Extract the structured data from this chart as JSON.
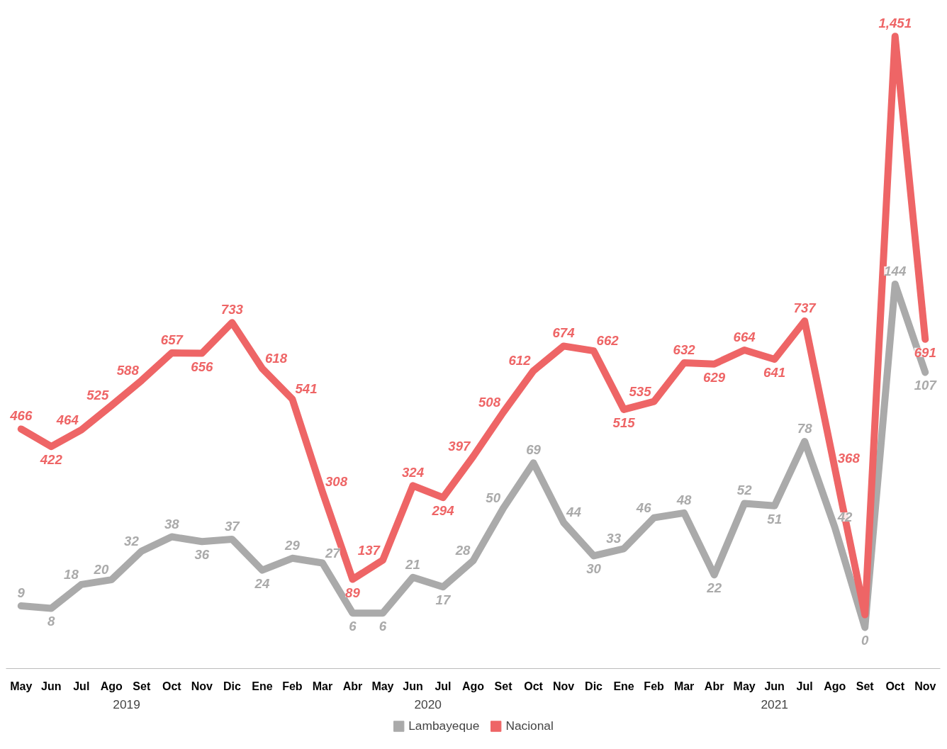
{
  "chart_data": {
    "type": "line",
    "x": [
      "2019-05",
      "2019-06",
      "2019-07",
      "2019-08",
      "2019-09",
      "2019-10",
      "2019-11",
      "2019-12",
      "2020-01",
      "2020-02",
      "2020-03",
      "2020-04",
      "2020-05",
      "2020-06",
      "2020-07",
      "2020-08",
      "2020-09",
      "2020-10",
      "2020-11",
      "2020-12",
      "2021-01",
      "2021-02",
      "2021-03",
      "2021-04",
      "2021-05",
      "2021-06",
      "2021-07",
      "2021-08",
      "2021-09",
      "2021-10",
      "2021-11"
    ],
    "xlim": [
      "2019-04-16",
      "2021-11-16"
    ],
    "xticks": [
      {
        "value": "2019-05",
        "label": "May"
      },
      {
        "value": "2019-06",
        "label": "Jun"
      },
      {
        "value": "2019-07",
        "label": "Jul"
      },
      {
        "value": "2019-08",
        "label": "Ago"
      },
      {
        "value": "2019-09",
        "label": "Set"
      },
      {
        "value": "2019-10",
        "label": "Oct"
      },
      {
        "value": "2019-11",
        "label": "Nov"
      },
      {
        "value": "2019-12",
        "label": "Dic"
      },
      {
        "value": "2020-01",
        "label": "Ene"
      },
      {
        "value": "2020-02",
        "label": "Feb"
      },
      {
        "value": "2020-03",
        "label": "Mar"
      },
      {
        "value": "2020-04",
        "label": "Abr"
      },
      {
        "value": "2020-05",
        "label": "May"
      },
      {
        "value": "2020-06",
        "label": "Jun"
      },
      {
        "value": "2020-07",
        "label": "Jul"
      },
      {
        "value": "2020-08",
        "label": "Ago"
      },
      {
        "value": "2020-09",
        "label": "Set"
      },
      {
        "value": "2020-10",
        "label": "Oct"
      },
      {
        "value": "2020-11",
        "label": "Nov"
      },
      {
        "value": "2020-12",
        "label": "Dic"
      },
      {
        "value": "2021-01",
        "label": "Ene"
      },
      {
        "value": "2021-02",
        "label": "Feb"
      },
      {
        "value": "2021-03",
        "label": "Mar"
      },
      {
        "value": "2021-04",
        "label": "Abr"
      },
      {
        "value": "2021-05",
        "label": "May"
      },
      {
        "value": "2021-06",
        "label": "Jun"
      },
      {
        "value": "2021-07",
        "label": "Jul"
      },
      {
        "value": "2021-08",
        "label": "Ago"
      },
      {
        "value": "2021-09",
        "label": "Set"
      },
      {
        "value": "2021-10",
        "label": "Oct"
      },
      {
        "value": "2021-11",
        "label": "Nov"
      }
    ],
    "tick_labels": "x",
    "grid": false,
    "legend": "bottom",
    "marker": "none",
    "data_labels": true,
    "annotations": [
      "2019",
      "2020",
      "2021"
    ],
    "series": [
      {
        "name": "Lambayeque",
        "color": "#aaaaaa",
        "axis": "y2",
        "values": [
          9,
          8,
          18,
          20,
          32,
          38,
          36,
          37,
          24,
          29,
          27,
          6,
          6,
          21,
          17,
          28,
          50,
          69,
          44,
          30,
          33,
          46,
          48,
          22,
          52,
          51,
          78,
          42,
          0,
          144,
          107
        ]
      },
      {
        "name": "Nacional",
        "color": "#ee6566",
        "values": [
          466,
          422,
          464,
          525,
          588,
          657,
          656,
          733,
          618,
          541,
          308,
          89,
          137,
          324,
          294,
          397,
          508,
          612,
          674,
          662,
          515,
          535,
          632,
          629,
          664,
          641,
          737,
          368,
          0,
          1451,
          691
        ],
        "value_labels": [
          "466",
          "422",
          "464",
          "525",
          "588",
          "657",
          "656",
          "733",
          "618",
          "541",
          "308",
          "89",
          "137",
          "324",
          "294",
          "397",
          "508",
          "612",
          "674",
          "662",
          "515",
          "535",
          "632",
          "629",
          "664",
          "641",
          "737",
          "368",
          null,
          "1,451",
          "691"
        ]
      }
    ]
  }
}
